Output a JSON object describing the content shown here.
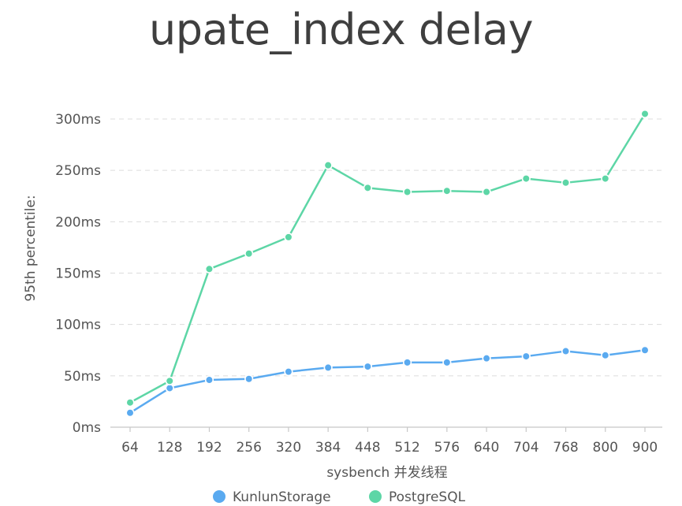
{
  "chart_data": {
    "type": "line",
    "title": "upate_index delay",
    "xlabel": "sysbench 并发线程",
    "ylabel": "95th percentile:",
    "categories": [
      "64",
      "128",
      "192",
      "256",
      "320",
      "384",
      "448",
      "512",
      "576",
      "640",
      "704",
      "768",
      "800",
      "900"
    ],
    "y_ticks": [
      "0ms",
      "50ms",
      "100ms",
      "150ms",
      "200ms",
      "250ms",
      "300ms"
    ],
    "ylim": [
      0,
      300
    ],
    "grid": true,
    "legend_position": "bottom",
    "series": [
      {
        "name": "KunlunStorage",
        "color": "#5aaaf0",
        "values": [
          14,
          38,
          46,
          47,
          54,
          58,
          59,
          63,
          63,
          67,
          69,
          74,
          70,
          75
        ]
      },
      {
        "name": "PostgreSQL",
        "color": "#5dd6a6",
        "values": [
          24,
          45,
          154,
          169,
          185,
          255,
          233,
          229,
          230,
          229,
          242,
          238,
          242,
          305
        ]
      }
    ]
  }
}
